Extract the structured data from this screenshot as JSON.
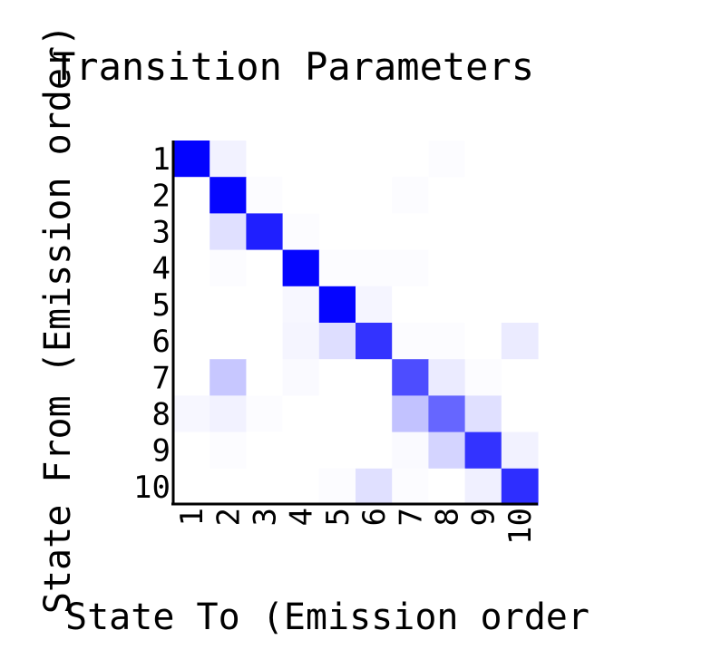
{
  "chart_data": {
    "type": "heatmap",
    "title": "Transition Parameters",
    "xlabel": "State To (Emission order",
    "ylabel": "State From (Emission order)",
    "x_categories": [
      "1",
      "2",
      "3",
      "4",
      "5",
      "6",
      "7",
      "8",
      "9",
      "10"
    ],
    "y_categories": [
      "1",
      "2",
      "3",
      "4",
      "5",
      "6",
      "7",
      "8",
      "9",
      "10"
    ],
    "color_low": "#ffffff",
    "color_high": "#0000ff",
    "value_range": [
      0,
      1
    ],
    "values": [
      [
        0.99,
        0.05,
        0.0,
        0.0,
        0.0,
        0.0,
        0.0,
        0.01,
        0.0,
        0.0
      ],
      [
        0.0,
        0.98,
        0.01,
        0.0,
        0.0,
        0.0,
        0.01,
        0.0,
        0.0,
        0.0
      ],
      [
        0.0,
        0.12,
        0.88,
        0.01,
        0.0,
        0.0,
        0.0,
        0.0,
        0.0,
        0.0
      ],
      [
        0.0,
        0.01,
        0.0,
        0.98,
        0.01,
        0.01,
        0.01,
        0.0,
        0.0,
        0.0
      ],
      [
        0.0,
        0.0,
        0.0,
        0.03,
        0.98,
        0.04,
        0.0,
        0.0,
        0.0,
        0.0
      ],
      [
        0.0,
        0.0,
        0.0,
        0.04,
        0.13,
        0.8,
        0.01,
        0.01,
        0.0,
        0.08
      ],
      [
        0.0,
        0.22,
        0.0,
        0.02,
        0.0,
        0.0,
        0.7,
        0.08,
        0.01,
        0.0
      ],
      [
        0.03,
        0.05,
        0.01,
        0.0,
        0.0,
        0.0,
        0.24,
        0.6,
        0.12,
        0.0
      ],
      [
        0.0,
        0.01,
        0.0,
        0.0,
        0.0,
        0.0,
        0.02,
        0.17,
        0.8,
        0.05
      ],
      [
        0.0,
        0.0,
        0.0,
        0.0,
        0.01,
        0.12,
        0.01,
        0.0,
        0.06,
        0.82
      ]
    ]
  }
}
